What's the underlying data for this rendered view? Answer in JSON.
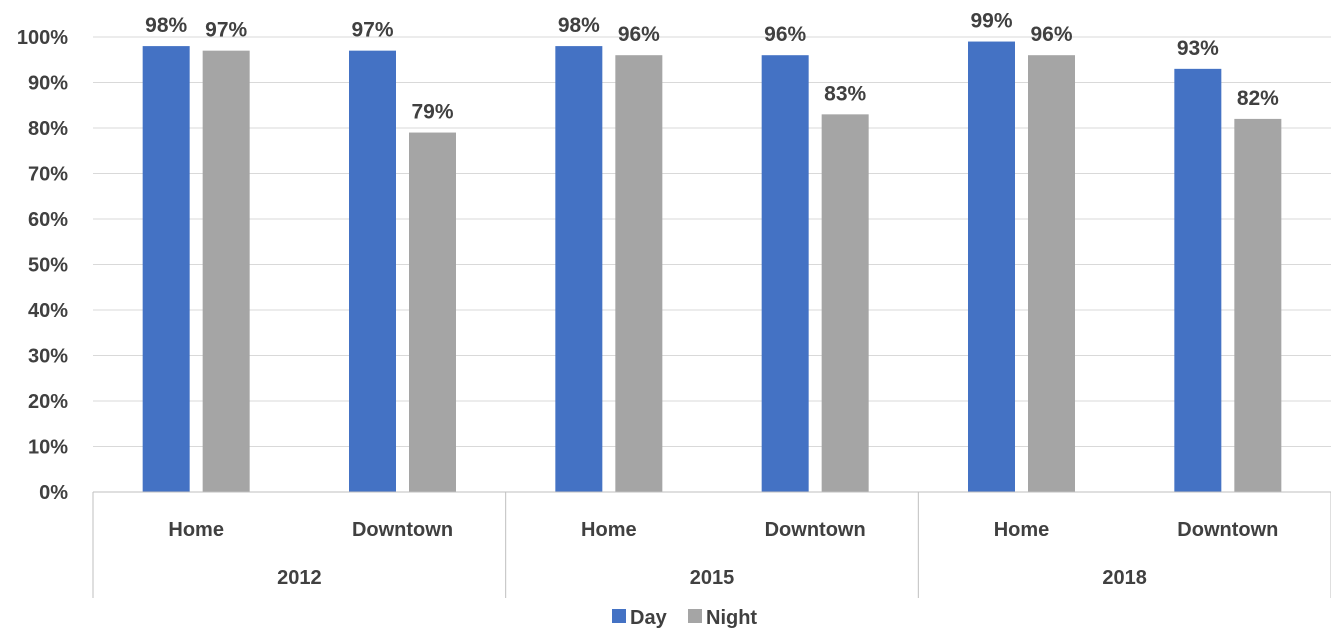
{
  "chart_data": {
    "type": "bar",
    "title": "",
    "xlabel": "",
    "ylabel": "",
    "ylim": [
      0,
      100
    ],
    "yticks": [
      "0%",
      "10%",
      "20%",
      "30%",
      "40%",
      "50%",
      "60%",
      "70%",
      "80%",
      "90%",
      "100%"
    ],
    "groups": [
      {
        "label": "2012",
        "categories": [
          "Home",
          "Downtown"
        ]
      },
      {
        "label": "2015",
        "categories": [
          "Home",
          "Downtown"
        ]
      },
      {
        "label": "2018",
        "categories": [
          "Home",
          "Downtown"
        ]
      }
    ],
    "categories": [
      "Home",
      "Downtown",
      "Home",
      "Downtown",
      "Home",
      "Downtown"
    ],
    "series": [
      {
        "name": "Day",
        "color": "#4472C4",
        "values": [
          98,
          97,
          98,
          96,
          99,
          93
        ],
        "labels": [
          "98%",
          "97%",
          "98%",
          "96%",
          "99%",
          "93%"
        ]
      },
      {
        "name": "Night",
        "color": "#A5A5A5",
        "values": [
          97,
          79,
          96,
          83,
          96,
          82
        ],
        "labels": [
          "97%",
          "79%",
          "96%",
          "83%",
          "96%",
          "82%"
        ]
      }
    ],
    "grid": true,
    "legend": "bottom-center"
  }
}
